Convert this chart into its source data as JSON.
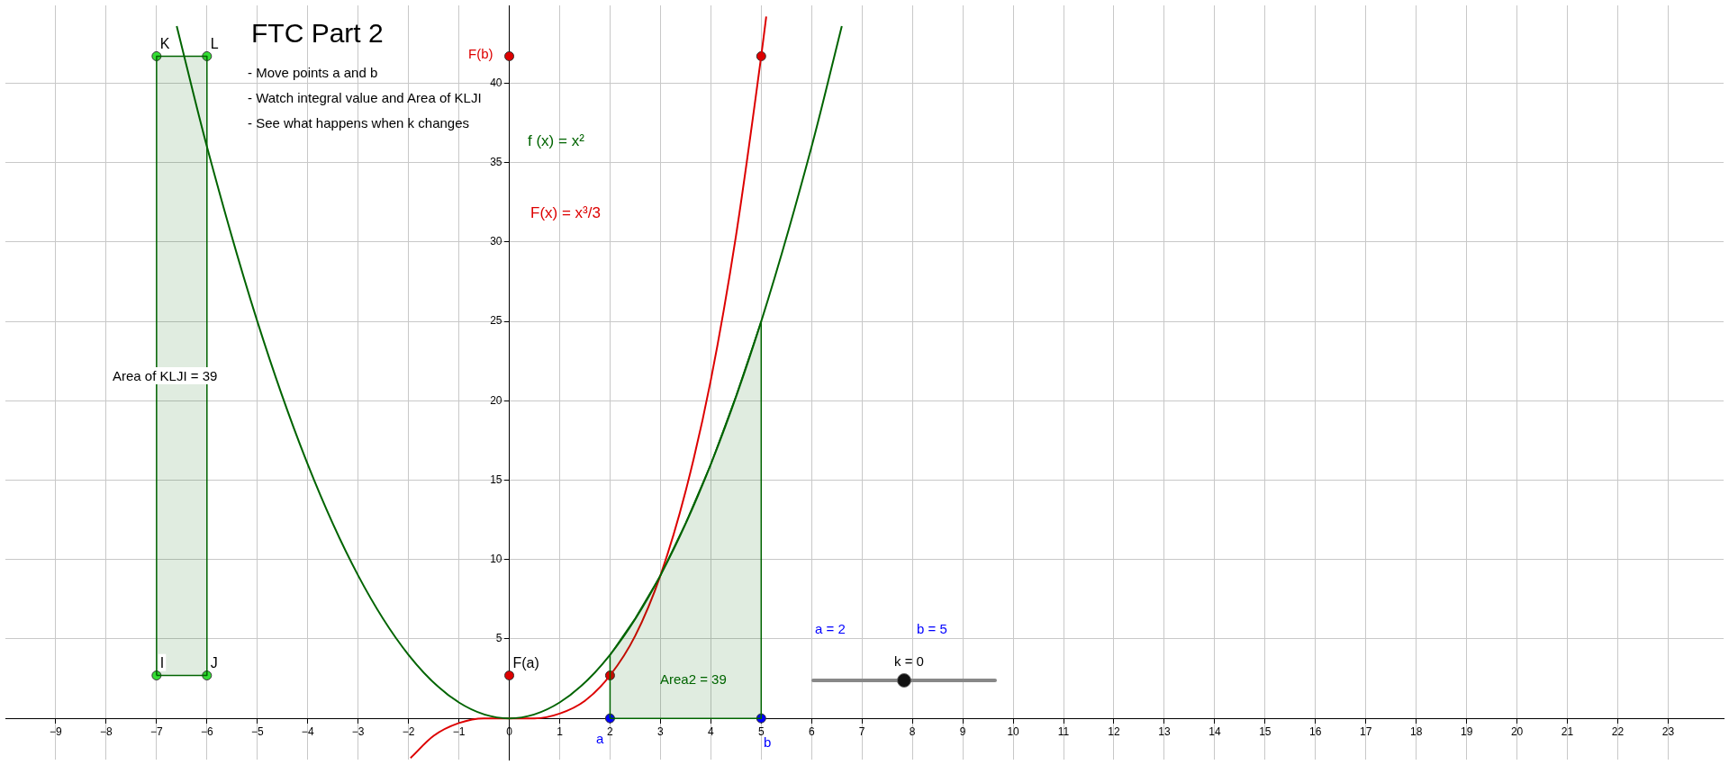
{
  "chart_data": {
    "type": "line",
    "title": "FTC Part 2",
    "xlim": [
      -10,
      24.1
    ],
    "ylim": [
      -2.6,
      44.9
    ],
    "xticks": [
      -9,
      -8,
      -7,
      -6,
      -5,
      -4,
      -3,
      -2,
      -1,
      0,
      1,
      2,
      3,
      4,
      5,
      6,
      7,
      8,
      9,
      10,
      11,
      12,
      13,
      14,
      15,
      16,
      17,
      18,
      19,
      20,
      21,
      22,
      23
    ],
    "yticks": [
      5,
      10,
      15,
      20,
      25,
      30,
      35,
      40
    ],
    "grid": true,
    "series": [
      {
        "type": "area",
        "color": "#006400",
        "x": [
          -7,
          -7,
          -6,
          -6,
          -7
        ],
        "values": [
          2.7,
          41.7,
          41.7,
          2.7,
          2.7
        ]
      },
      {
        "type": "area",
        "color": "#006400",
        "x": [
          2,
          2,
          2.5,
          3,
          3.5,
          4,
          4.5,
          5,
          5,
          2
        ],
        "values": [
          0,
          4,
          6.3,
          9,
          12.3,
          16,
          20.3,
          25,
          0,
          0
        ]
      },
      {
        "type": "line",
        "color": "#006400",
        "x": [
          -6.6,
          -6,
          -5,
          -4,
          -3,
          -2,
          -1,
          0,
          1,
          2,
          3,
          4,
          5,
          6,
          6.6
        ],
        "values": [
          43.6,
          36,
          25,
          16,
          9,
          4,
          1,
          0,
          1,
          4,
          9,
          16,
          25,
          36,
          43.6
        ]
      },
      {
        "type": "line",
        "color": "#dd0000",
        "x": [
          -1.96,
          -1.5,
          -1,
          -0.5,
          0,
          0.5,
          1,
          1.5,
          2,
          2.5,
          3,
          3.5,
          4,
          4.5,
          5,
          5.1
        ],
        "values": [
          -2.5,
          -1.1,
          -0.3,
          0,
          0,
          0,
          0.3,
          1.1,
          2.7,
          5.2,
          9,
          14.3,
          21.3,
          30.4,
          41.7,
          44.2
        ]
      },
      {
        "type": "scatter",
        "color": "#33dd33",
        "marker": "circle",
        "x": [
          -7,
          -6,
          -7,
          -6
        ],
        "values": [
          41.7,
          41.7,
          2.7,
          2.7
        ]
      },
      {
        "type": "scatter",
        "color": "#dd0000",
        "marker": "circle",
        "x": [
          0,
          5,
          0,
          2
        ],
        "values": [
          41.7,
          41.7,
          2.7,
          2.7
        ]
      },
      {
        "type": "scatter",
        "color": "#0000ff",
        "marker": "circle",
        "x": [
          2,
          5
        ],
        "values": [
          0,
          0
        ]
      }
    ],
    "annotations": [
      "- Move points a and b",
      "- Watch integral value and Area of KLJI",
      "- See what happens when k changes",
      "a = 2",
      "b = 5",
      "k = 0",
      {
        "text": "K",
        "x": -6.93,
        "y": 42.2
      },
      {
        "text": "L",
        "x": -5.93,
        "y": 42.2
      },
      {
        "text": "I",
        "x": -6.93,
        "y": 3.2
      },
      {
        "text": "J",
        "x": -5.93,
        "y": 3.2
      },
      "F(b)",
      {
        "text": "F(a)",
        "x": 0.07,
        "y": 3.2
      },
      "a",
      "b",
      "Area2 = 39",
      "Area of  KLJI = 39",
      "f (x) = x²",
      "F(x) = x³/3"
    ]
  }
}
